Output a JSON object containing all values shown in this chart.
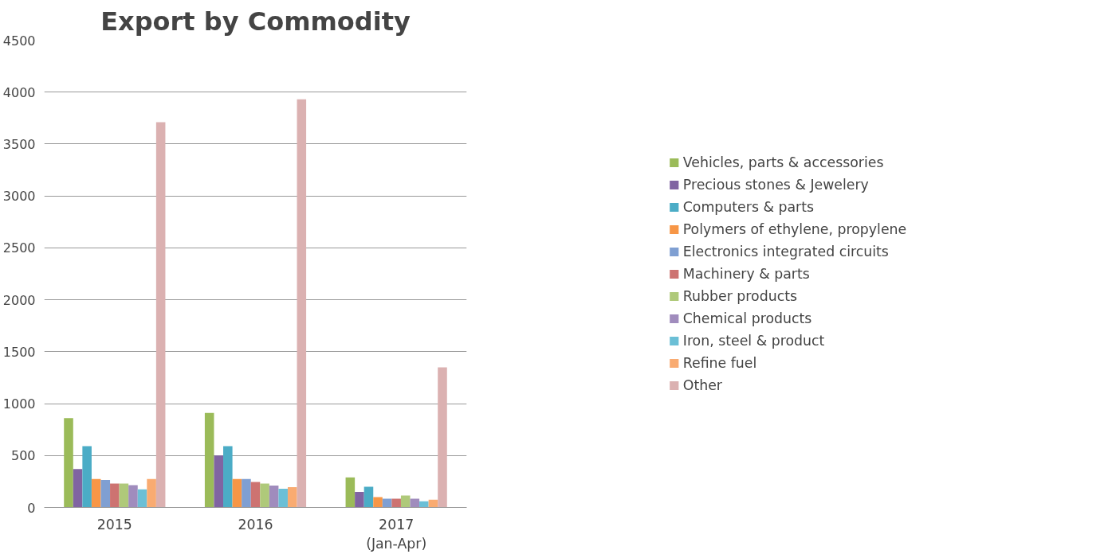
{
  "chart_data": {
    "type": "bar",
    "title": "Export by Commodity",
    "categories": [
      "2015",
      "2016",
      "2017\n(Jan-Apr)"
    ],
    "ylim": [
      0,
      4500
    ],
    "yticks": [
      0,
      500,
      1000,
      1500,
      2000,
      2500,
      3000,
      3500,
      4000,
      4500
    ],
    "grid": "y",
    "legend": "right",
    "series": [
      {
        "name": "Vehicles, parts & accessories",
        "color": "#9bbb59",
        "values": [
          860,
          910,
          290
        ]
      },
      {
        "name": "Precious stones & Jewelery",
        "color": "#8064a2",
        "values": [
          370,
          500,
          150
        ]
      },
      {
        "name": "Computers & parts",
        "color": "#4bacc6",
        "values": [
          590,
          590,
          200
        ]
      },
      {
        "name": "Polymers of ethylene, propylene",
        "color": "#f79646",
        "values": [
          275,
          275,
          100
        ]
      },
      {
        "name": "Electronics integrated circuits",
        "color": "#7f9fd2",
        "values": [
          265,
          275,
          85
        ]
      },
      {
        "name": "Machinery & parts",
        "color": "#cd7371",
        "values": [
          230,
          245,
          85
        ]
      },
      {
        "name": "Rubber products",
        "color": "#afc97a",
        "values": [
          230,
          230,
          115
        ]
      },
      {
        "name": "Chemical products",
        "color": "#a08cbd",
        "values": [
          215,
          210,
          85
        ]
      },
      {
        "name": "Iron, steel & product",
        "color": "#6bbfd6",
        "values": [
          175,
          180,
          60
        ]
      },
      {
        "name": "Refine fuel",
        "color": "#f9ab71",
        "values": [
          275,
          195,
          75
        ]
      },
      {
        "name": "Other",
        "color": "#dbb1b1",
        "values": [
          3710,
          3930,
          1350
        ]
      }
    ]
  }
}
